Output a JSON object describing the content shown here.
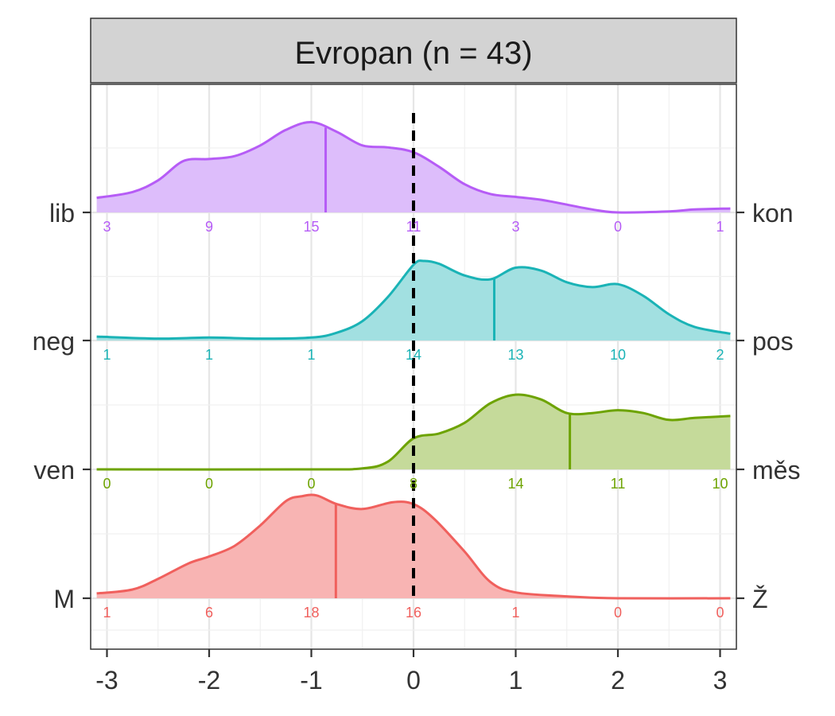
{
  "chart_data": {
    "type": "ridgeline-density",
    "facet_title": "Evropan (n = 43)",
    "x_ticks": [
      -3,
      -2,
      -1,
      0,
      1,
      2,
      3
    ],
    "xlim": [
      -3.1,
      3.1
    ],
    "reference_line_x": 0,
    "grid": true,
    "count_positions": [
      -3,
      -2,
      -1,
      0,
      1,
      2,
      3
    ],
    "series": [
      {
        "left_label": "M",
        "right_label": "Ž",
        "color": "#F0605D",
        "fill": "#F8B4B3",
        "mean": -0.76,
        "counts": [
          1,
          6,
          18,
          16,
          1,
          0,
          0
        ],
        "density": [
          [
            -3.1,
            0.05
          ],
          [
            -2.75,
            0.09
          ],
          [
            -2.5,
            0.2
          ],
          [
            -2.2,
            0.36
          ],
          [
            -2.0,
            0.43
          ],
          [
            -1.75,
            0.54
          ],
          [
            -1.5,
            0.75
          ],
          [
            -1.25,
            1.0
          ],
          [
            -1.1,
            1.05
          ],
          [
            -0.95,
            1.06
          ],
          [
            -0.75,
            0.97
          ],
          [
            -0.5,
            0.92
          ],
          [
            -0.2,
            0.99
          ],
          [
            0.0,
            0.97
          ],
          [
            0.2,
            0.82
          ],
          [
            0.5,
            0.48
          ],
          [
            0.75,
            0.17
          ],
          [
            1.0,
            0.06
          ],
          [
            1.5,
            0.02
          ],
          [
            2.0,
            0.0
          ],
          [
            3.1,
            0.0
          ]
        ]
      },
      {
        "left_label": "ven",
        "right_label": "měs",
        "color": "#6DA300",
        "fill": "#C5DA9A",
        "mean": 1.53,
        "counts": [
          0,
          0,
          0,
          8,
          14,
          11,
          10
        ],
        "density": [
          [
            -3.1,
            0.0
          ],
          [
            -1.0,
            0.0
          ],
          [
            -0.5,
            0.01
          ],
          [
            -0.25,
            0.08
          ],
          [
            0.0,
            0.32
          ],
          [
            0.25,
            0.37
          ],
          [
            0.5,
            0.48
          ],
          [
            0.75,
            0.68
          ],
          [
            1.0,
            0.77
          ],
          [
            1.25,
            0.72
          ],
          [
            1.5,
            0.58
          ],
          [
            1.75,
            0.58
          ],
          [
            2.0,
            0.61
          ],
          [
            2.25,
            0.58
          ],
          [
            2.5,
            0.51
          ],
          [
            2.75,
            0.53
          ],
          [
            3.1,
            0.55
          ]
        ]
      },
      {
        "left_label": "neg",
        "right_label": "pos",
        "color": "#1AB3B6",
        "fill": "#A2E0E1",
        "mean": 0.79,
        "counts": [
          1,
          1,
          1,
          14,
          13,
          10,
          2
        ],
        "density": [
          [
            -3.1,
            0.04
          ],
          [
            -2.5,
            0.02
          ],
          [
            -2.0,
            0.03
          ],
          [
            -1.5,
            0.02
          ],
          [
            -1.0,
            0.03
          ],
          [
            -0.75,
            0.08
          ],
          [
            -0.5,
            0.2
          ],
          [
            -0.25,
            0.45
          ],
          [
            0.0,
            0.78
          ],
          [
            0.1,
            0.82
          ],
          [
            0.25,
            0.79
          ],
          [
            0.5,
            0.67
          ],
          [
            0.75,
            0.63
          ],
          [
            1.0,
            0.75
          ],
          [
            1.25,
            0.72
          ],
          [
            1.5,
            0.6
          ],
          [
            1.75,
            0.55
          ],
          [
            2.0,
            0.58
          ],
          [
            2.25,
            0.46
          ],
          [
            2.5,
            0.27
          ],
          [
            2.75,
            0.14
          ],
          [
            3.1,
            0.07
          ]
        ]
      },
      {
        "left_label": "lib",
        "right_label": "kon",
        "color": "#B65CF6",
        "fill": "#DDBDFB",
        "mean": -0.86,
        "counts": [
          3,
          9,
          15,
          11,
          3,
          0,
          1
        ],
        "density": [
          [
            -3.1,
            0.15
          ],
          [
            -2.75,
            0.21
          ],
          [
            -2.5,
            0.33
          ],
          [
            -2.25,
            0.53
          ],
          [
            -2.0,
            0.55
          ],
          [
            -1.75,
            0.58
          ],
          [
            -1.5,
            0.69
          ],
          [
            -1.25,
            0.85
          ],
          [
            -1.0,
            0.93
          ],
          [
            -0.75,
            0.83
          ],
          [
            -0.5,
            0.69
          ],
          [
            -0.25,
            0.67
          ],
          [
            0.0,
            0.62
          ],
          [
            0.25,
            0.47
          ],
          [
            0.5,
            0.29
          ],
          [
            0.75,
            0.19
          ],
          [
            1.0,
            0.16
          ],
          [
            1.25,
            0.13
          ],
          [
            1.5,
            0.08
          ],
          [
            1.75,
            0.03
          ],
          [
            2.0,
            0.0
          ],
          [
            2.5,
            0.01
          ],
          [
            2.75,
            0.03
          ],
          [
            3.1,
            0.04
          ]
        ]
      }
    ]
  }
}
